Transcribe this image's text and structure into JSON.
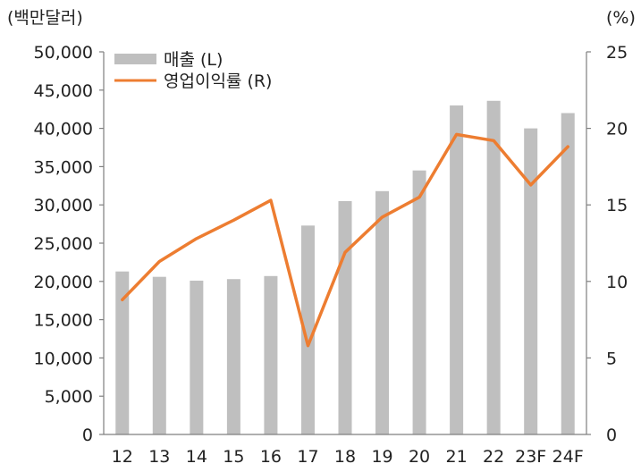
{
  "chart_data": {
    "type": "bar+line",
    "categories": [
      "12",
      "13",
      "14",
      "15",
      "16",
      "17",
      "18",
      "19",
      "20",
      "21",
      "22",
      "23F",
      "24F"
    ],
    "series": [
      {
        "name": "매출 (L)",
        "type": "bar",
        "axis": "left",
        "color": "#bfbfbf",
        "values": [
          21300,
          20600,
          20100,
          20300,
          20700,
          27300,
          30500,
          31800,
          34500,
          43000,
          43600,
          40000,
          42000
        ]
      },
      {
        "name": "영업이익률 (R)",
        "type": "line",
        "axis": "right",
        "color": "#ed7d31",
        "values": [
          8.8,
          11.3,
          12.8,
          14.0,
          15.3,
          5.8,
          11.9,
          14.2,
          15.5,
          19.6,
          19.2,
          16.3,
          18.8
        ]
      }
    ],
    "left_axis": {
      "unit_label": "(백만달러)",
      "ylim": [
        0,
        50000
      ],
      "ticks": [
        "0",
        "5,000",
        "10,000",
        "15,000",
        "20,000",
        "25,000",
        "30,000",
        "35,000",
        "40,000",
        "45,000",
        "50,000"
      ]
    },
    "right_axis": {
      "unit_label": "(%)",
      "ylim": [
        0,
        25
      ],
      "ticks": [
        "0",
        "5",
        "10",
        "15",
        "20",
        "25"
      ]
    },
    "legend": {
      "position": "top-left",
      "entries": [
        "매출 (L)",
        "영업이익률 (R)"
      ]
    },
    "grid": false
  }
}
